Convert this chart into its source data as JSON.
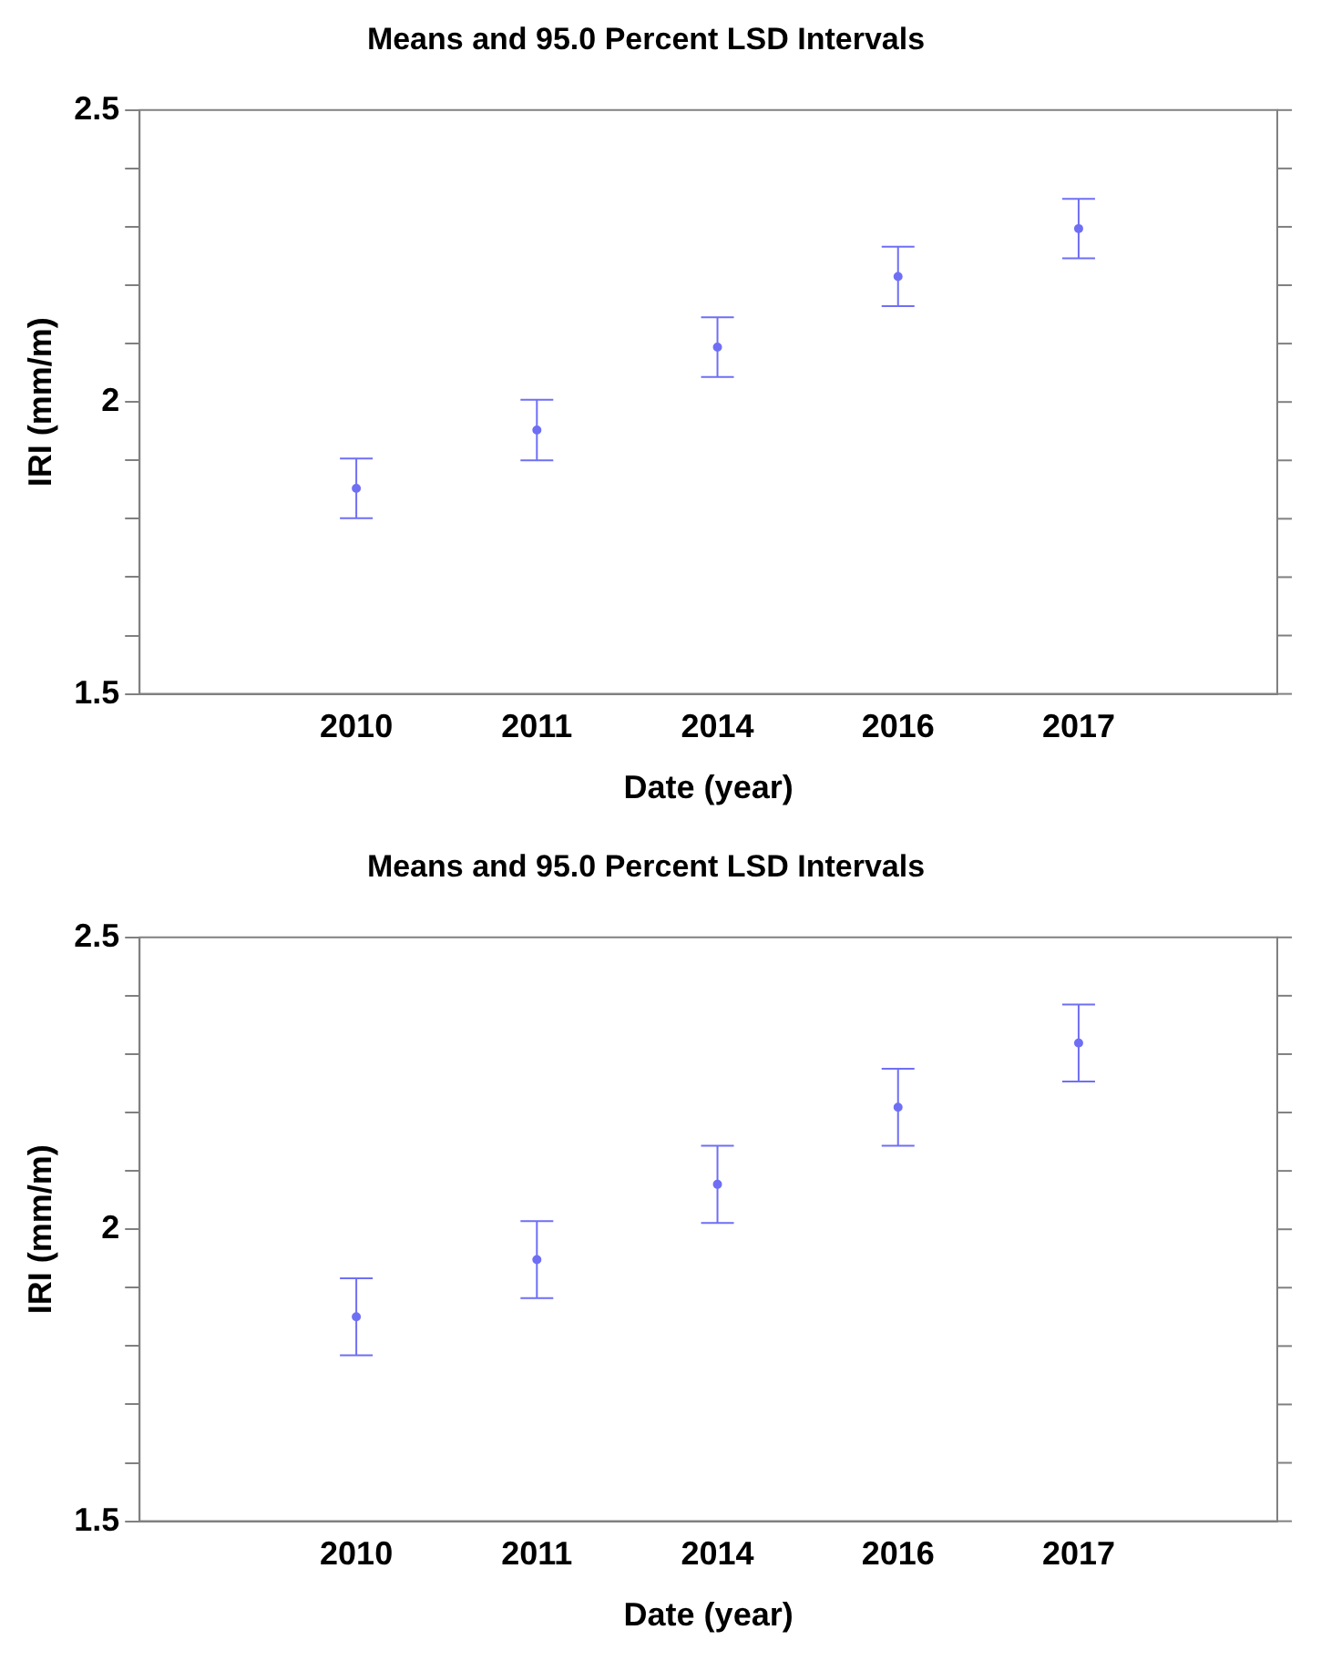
{
  "chart_data": [
    {
      "type": "scatter",
      "title": "Means and 95.0 Percent LSD Intervals",
      "xlabel": "Date (year)",
      "ylabel": "IRI (mm/m)",
      "categories": [
        "2010",
        "2011",
        "2014",
        "2016",
        "2017"
      ],
      "series": [
        {
          "color": "#6f6ff5",
          "values": [
            1.852,
            1.952,
            2.094,
            2.215,
            2.297
          ],
          "errors": [
            0.051,
            0.052,
            0.051,
            0.051,
            0.051
          ]
        }
      ],
      "ylim": [
        1.5,
        2.5
      ],
      "yticks": [
        1.5,
        {
          "value": 1.6,
          "label": null
        },
        {
          "value": 1.7,
          "label": null
        },
        {
          "value": 1.8,
          "label": null
        },
        {
          "value": 1.9,
          "label": null
        },
        2,
        {
          "value": 2.1,
          "label": null
        },
        {
          "value": 2.2,
          "label": null
        },
        {
          "value": 2.3,
          "label": null
        },
        {
          "value": 2.4,
          "label": null
        },
        2.5
      ],
      "marker": "circle",
      "grid": false,
      "legend": false
    },
    {
      "type": "scatter",
      "title": "Means and 95.0 Percent LSD Intervals",
      "xlabel": "Date (year)",
      "ylabel": "IRI (mm/m)",
      "categories": [
        "2010",
        "2011",
        "2014",
        "2016",
        "2017"
      ],
      "series": [
        {
          "color": "#6f6ff5",
          "values": [
            1.85,
            1.948,
            2.077,
            2.209,
            2.319
          ],
          "errors": [
            0.066,
            0.066,
            0.066,
            0.066,
            0.066
          ]
        }
      ],
      "ylim": [
        1.5,
        2.5
      ],
      "yticks": [
        1.5,
        {
          "value": 1.6,
          "label": null
        },
        {
          "value": 1.7,
          "label": null
        },
        {
          "value": 1.8,
          "label": null
        },
        {
          "value": 1.9,
          "label": null
        },
        2,
        {
          "value": 2.1,
          "label": null
        },
        {
          "value": 2.2,
          "label": null
        },
        {
          "value": 2.3,
          "label": null
        },
        {
          "value": 2.4,
          "label": null
        },
        2.5
      ],
      "marker": "circle",
      "grid": false,
      "legend": false
    }
  ]
}
